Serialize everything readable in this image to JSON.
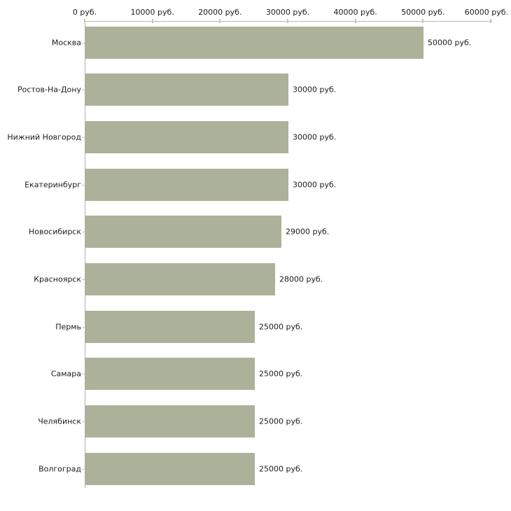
{
  "chart_data": {
    "type": "bar",
    "orientation": "horizontal",
    "title": "",
    "xlabel": "",
    "ylabel": "",
    "unit": "руб.",
    "xlim": [
      0,
      60000
    ],
    "grid": false,
    "legend": false,
    "categories": [
      "Москва",
      "Ростов-На-Дону",
      "Нижний Новгород",
      "Екатеринбург",
      "Новосибирск",
      "Красноярск",
      "Пермь",
      "Самара",
      "Челябинск",
      "Волгоград"
    ],
    "values": [
      50000,
      30000,
      30000,
      30000,
      29000,
      28000,
      25000,
      25000,
      25000,
      25000
    ],
    "value_labels": [
      "50000 руб.",
      "30000 руб.",
      "30000 руб.",
      "30000 руб.",
      "29000 руб.",
      "28000 руб.",
      "25000 руб.",
      "25000 руб.",
      "25000 руб.",
      "25000 руб."
    ],
    "x_ticks": [
      {
        "value": 0,
        "label": "0 руб."
      },
      {
        "value": 10000,
        "label": "10000 руб."
      },
      {
        "value": 20000,
        "label": "20000 руб."
      },
      {
        "value": 30000,
        "label": "30000 руб."
      },
      {
        "value": 40000,
        "label": "40000 руб."
      },
      {
        "value": 50000,
        "label": "50000 руб."
      },
      {
        "value": 60000,
        "label": "60000 руб."
      }
    ],
    "colors": {
      "bar": "#acb199",
      "axis_line": "#b7b7b2",
      "tick_mark": "#c9c9a6",
      "text": "#1b1b1b",
      "background": "#ffffff"
    }
  }
}
